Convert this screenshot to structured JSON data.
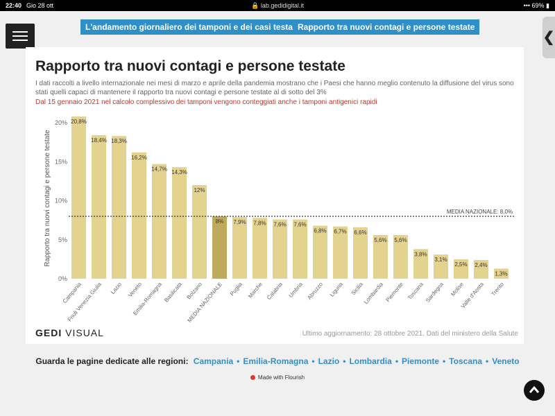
{
  "status_bar": {
    "time": "22:40",
    "date": "Gio 28 ott",
    "url": "lab.gedidigital.it",
    "battery": "69%"
  },
  "nav": {
    "links": [
      "L'andamento giornaliero dei tamponi e dei casi testati",
      "Rapporto tra nuovi contagi e persone testate"
    ],
    "back_icon": "chevron-left-icon",
    "menu_icon": "hamburger-icon"
  },
  "card": {
    "title": "Rapporto tra nuovi contagi e persone testate",
    "description": "I dati raccolti a livello internazionale nei mesi di marzo e aprile della pandemia mostrano che i Paesi che hanno meglio contenuto la diffusione del virus sono stati quelli capaci di mantenere il rapporto tra nuovi contagi e persone testate al di sotto del 3%",
    "note": "Dal 15 gennaio 2021 nel calcolo complessivo dei tamponi vengono conteggiati anche i tamponi antigenici rapidi",
    "logo_bold": "GEDI",
    "logo_light": " VISUAL",
    "source": "Ultimo aggiornamento: 28 ottobre 2021. Dati del ministero della Salute"
  },
  "footer": {
    "label": "Guarda le pagine dedicate alle regioni:",
    "regions": [
      "Campania",
      "Emilia-Romagna",
      "Lazio",
      "Lombardia",
      "Piemonte",
      "Toscana",
      "Veneto"
    ],
    "made_with": "Made with Flourish",
    "scroll_top_icon": "chevron-up-icon"
  },
  "colors": {
    "bar": "#e4d38f",
    "highlight": "#bea95c",
    "accent": "#2f8fc9",
    "note": "#c0392b"
  },
  "chart_data": {
    "type": "bar",
    "ylabel": "Rapporto tra nuovi contagi e persone testate",
    "ylim": [
      0,
      20.8
    ],
    "yticks": [
      0,
      5,
      10,
      15,
      20
    ],
    "ytick_labels": [
      "0%",
      "5%",
      "10%",
      "15%",
      "20%"
    ],
    "categories": [
      "Campania",
      "Friuli Venezia Giulia",
      "Lazio",
      "Veneto",
      "Emilia-Romagna",
      "Basilicata",
      "Bolzano",
      "MEDIA NAZIONALE",
      "Puglia",
      "Marche",
      "Calabria",
      "Umbria",
      "Abruzzo",
      "Liguria",
      "Sicilia",
      "Lombardia",
      "Piemonte",
      "Toscana",
      "Sardegna",
      "Molise",
      "Valle d'Aosta",
      "Trento"
    ],
    "values": [
      20.8,
      18.4,
      18.3,
      16.2,
      14.7,
      14.3,
      12,
      8,
      7.9,
      7.8,
      7.6,
      7.6,
      6.8,
      6.7,
      6.6,
      5.6,
      5.6,
      3.8,
      3.1,
      2.5,
      2.4,
      1.3
    ],
    "value_labels": [
      "20,8%",
      "18,4%",
      "18,3%",
      "16,2%",
      "14,7%",
      "14,3%",
      "12%",
      "8%",
      "7,9%",
      "7,8%",
      "7,6%",
      "7,6%",
      "6,8%",
      "6,7%",
      "6,6%",
      "5,6%",
      "5,6%",
      "3,8%",
      "3,1%",
      "2,5%",
      "2,4%",
      "1,3%"
    ],
    "highlight": "MEDIA NAZIONALE",
    "reference_line": {
      "value": 8.0,
      "label": "MEDIA NAZIONALE: 8,0%"
    }
  }
}
